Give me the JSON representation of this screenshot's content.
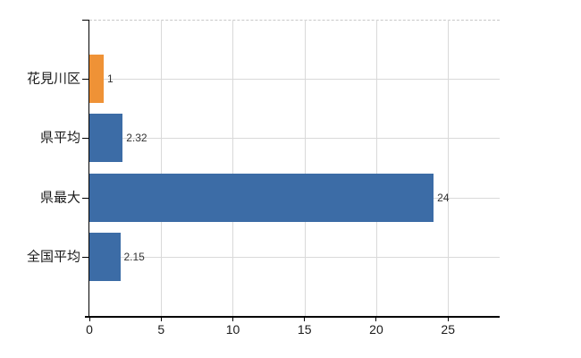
{
  "chart_data": {
    "type": "bar",
    "orientation": "horizontal",
    "title": "",
    "xlabel": "",
    "ylabel": "",
    "categories": [
      "花見川区",
      "県平均",
      "県最大",
      "全国平均"
    ],
    "values": [
      1,
      2.32,
      24,
      2.15
    ],
    "value_labels": [
      "1",
      "2.32",
      "24",
      "2.15"
    ],
    "bar_colors": [
      "#ef9236",
      "#3c6ca6",
      "#3c6ca6",
      "#3c6ca6"
    ],
    "xticks": [
      0,
      5,
      10,
      15,
      20,
      25
    ],
    "xlim": [
      0,
      28.6
    ],
    "grid": true,
    "legend": "none"
  },
  "colors": {
    "accent_orange": "#ef9236",
    "accent_blue": "#3c6ca6",
    "axis": "#000000",
    "gridline": "#d9d9d9",
    "top_border": "#c8c8c8",
    "value_label": "#333333",
    "tick_label": "#1a1a1a",
    "background": "#ffffff"
  }
}
